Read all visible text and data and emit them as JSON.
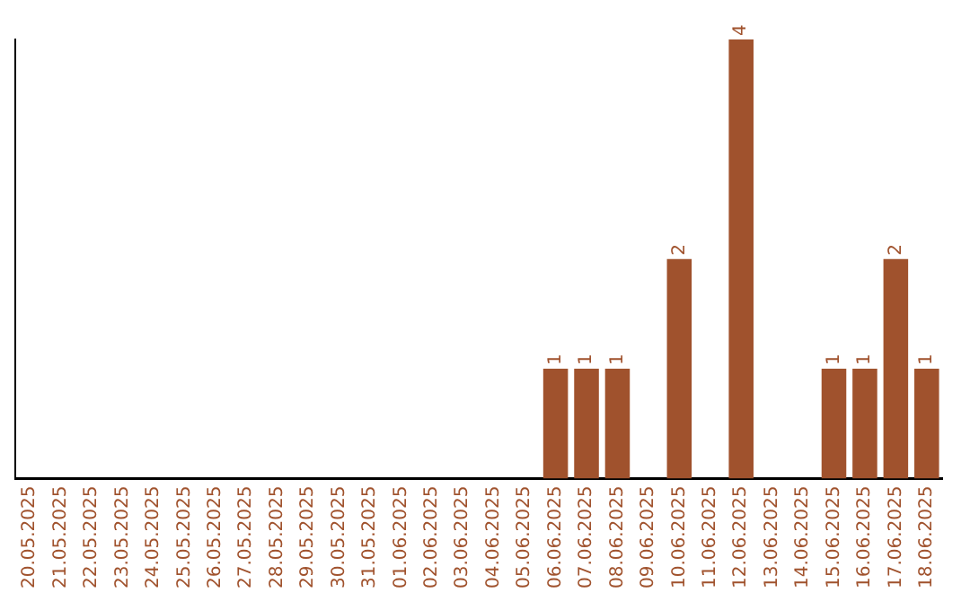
{
  "chart_data": {
    "type": "bar",
    "categories": [
      "20.05.2025",
      "21.05.2025",
      "22.05.2025",
      "23.05.2025",
      "24.05.2025",
      "25.05.2025",
      "26.05.2025",
      "27.05.2025",
      "28.05.2025",
      "29.05.2025",
      "30.05.2025",
      "31.05.2025",
      "01.06.2025",
      "02.06.2025",
      "03.06.2025",
      "04.06.2025",
      "05.06.2025",
      "06.06.2025",
      "07.06.2025",
      "08.06.2025",
      "09.06.2025",
      "10.06.2025",
      "11.06.2025",
      "12.06.2025",
      "13.06.2025",
      "14.06.2025",
      "15.06.2025",
      "16.06.2025",
      "17.06.2025",
      "18.06.2025"
    ],
    "values": [
      null,
      null,
      null,
      null,
      null,
      null,
      null,
      null,
      null,
      null,
      null,
      null,
      null,
      null,
      null,
      null,
      null,
      1,
      1,
      1,
      null,
      2,
      null,
      4,
      null,
      null,
      1,
      1,
      2,
      1
    ],
    "value_labels": [
      null,
      null,
      null,
      null,
      null,
      null,
      null,
      null,
      null,
      null,
      null,
      null,
      null,
      null,
      null,
      null,
      null,
      "1",
      "1",
      "1",
      null,
      "2",
      null,
      "4",
      null,
      null,
      "1",
      "1",
      "2",
      "1"
    ],
    "color": "#a0522d",
    "tick_labels": "x",
    "grid": false,
    "legend": false
  }
}
